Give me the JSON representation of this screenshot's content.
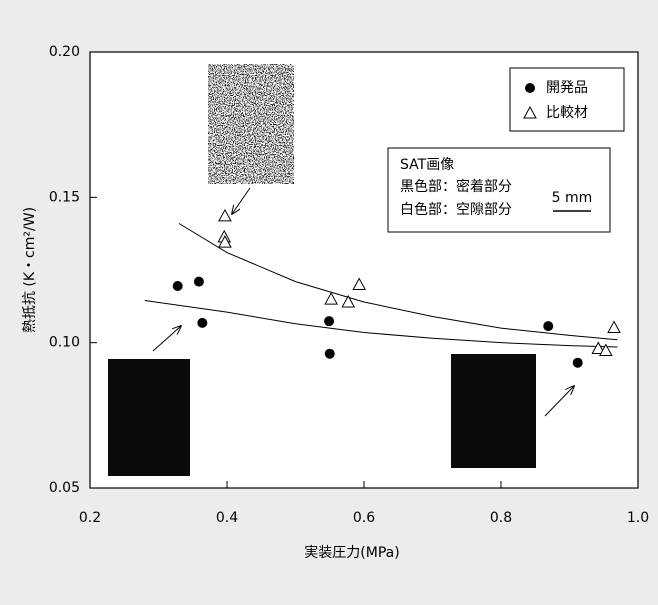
{
  "chart_data": {
    "type": "scatter",
    "xlabel": "実装圧力(MPa)",
    "ylabel": "熱抵抗 (K・cm²/W)",
    "xlim": [
      0.2,
      1.0
    ],
    "ylim": [
      0.05,
      0.2
    ],
    "xticks": [
      0.2,
      0.4,
      0.6,
      0.8,
      {
        "value": 1,
        "label": "1.0"
      }
    ],
    "yticks": [
      0.05,
      {
        "value": 0.1,
        "label": "0.10"
      },
      0.15,
      {
        "value": 0.2,
        "label": "0.20"
      }
    ],
    "series": [
      {
        "name": "開発品",
        "marker": "circle",
        "color": "#000000",
        "x": [
          0.328,
          0.359,
          0.364,
          0.549,
          0.55,
          0.869,
          0.912
        ],
        "values": [
          0.1195,
          0.121,
          0.1068,
          0.1074,
          0.0962,
          0.1057,
          0.0931
        ]
      },
      {
        "name": "比較材",
        "marker": "triangle",
        "color": "#000000",
        "x": [
          0.397,
          0.396,
          0.397,
          0.552,
          0.577,
          0.593,
          0.942,
          0.953,
          0.965
        ],
        "values": [
          0.1436,
          0.1364,
          0.1346,
          0.115,
          0.114,
          0.12,
          0.098,
          0.0973,
          0.1052
        ]
      }
    ],
    "trend_lines": [
      {
        "x": [
          0.33,
          0.4,
          0.5,
          0.6,
          0.7,
          0.8,
          0.9,
          0.97
        ],
        "values": [
          0.141,
          0.131,
          0.121,
          0.114,
          0.109,
          0.105,
          0.1025,
          0.101
        ]
      },
      {
        "x": [
          0.28,
          0.4,
          0.5,
          0.6,
          0.7,
          0.8,
          0.9,
          0.97
        ],
        "values": [
          0.1145,
          0.1105,
          0.1065,
          0.1035,
          0.1015,
          0.1,
          0.099,
          0.0985
        ]
      }
    ],
    "sat_note": {
      "title": "SAT画像",
      "lines": [
        "黒色部：密着部分",
        "白色部：空隙部分"
      ],
      "scale": "5 mm"
    }
  }
}
